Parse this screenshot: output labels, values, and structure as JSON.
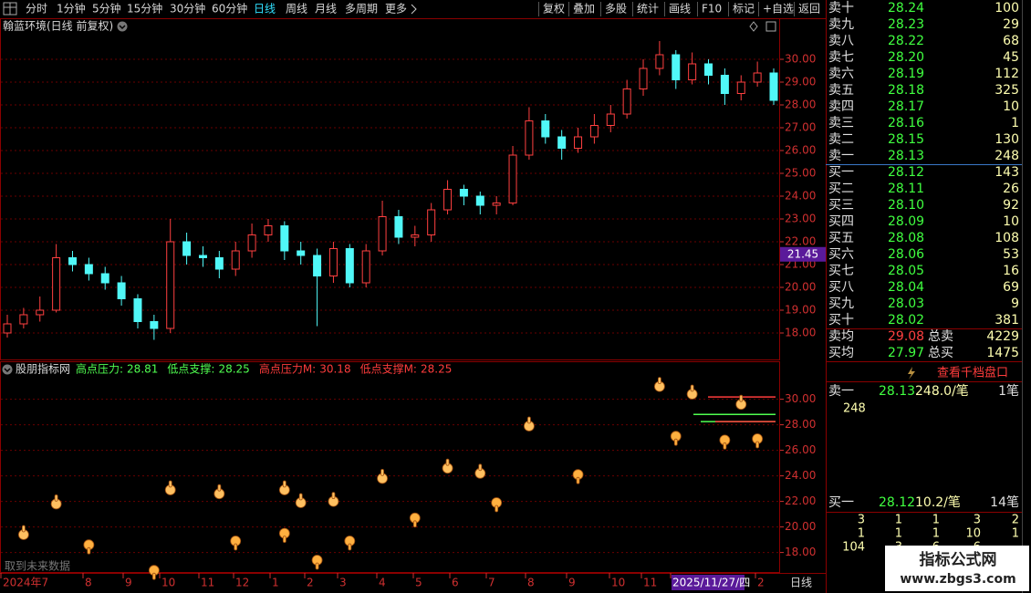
{
  "toolbar": {
    "left": [
      "分时",
      "1分钟",
      "5分钟",
      "15分钟",
      "30分钟",
      "60分钟",
      "日线",
      "周线",
      "月线",
      "多周期",
      "更多"
    ],
    "active": "日线",
    "right": [
      "复权",
      "叠加",
      "多股",
      "统计",
      "画线",
      "F10",
      "标记",
      "+自选",
      "返回"
    ]
  },
  "chart_data": [
    {
      "type": "candlestick",
      "title": "翰蓝环境(日线 前复权)",
      "up_color": "#ff4040",
      "down_color": "#50f8f8",
      "open": [
        18.0,
        18.4,
        18.8,
        19.0,
        21.3,
        21.0,
        20.6,
        20.2,
        19.5,
        18.5,
        18.2,
        22.0,
        21.4,
        21.3,
        20.8,
        21.6,
        22.3,
        22.7,
        21.6,
        21.4,
        20.5,
        21.7,
        20.2,
        21.6,
        23.1,
        22.2,
        22.3,
        23.4,
        24.3,
        24.0,
        23.6,
        23.7,
        25.8,
        27.3,
        26.6,
        26.1,
        26.6,
        27.1,
        27.6,
        28.7,
        29.6,
        30.2,
        29.1,
        29.8,
        29.3,
        28.5,
        29.0,
        29.4
      ],
      "high": [
        18.8,
        19.1,
        19.6,
        21.9,
        21.6,
        21.3,
        20.9,
        20.5,
        19.7,
        18.8,
        23.0,
        22.4,
        21.8,
        21.6,
        22.0,
        22.8,
        23.0,
        22.9,
        22.0,
        21.7,
        22.0,
        21.9,
        21.9,
        23.8,
        23.4,
        22.7,
        23.7,
        24.7,
        24.5,
        24.2,
        24.0,
        26.2,
        27.9,
        27.6,
        26.9,
        27.0,
        27.6,
        28.0,
        29.1,
        30.0,
        30.8,
        30.4,
        30.3,
        30.0,
        29.6,
        29.3,
        29.9,
        29.6
      ],
      "low": [
        17.8,
        18.2,
        18.5,
        18.9,
        20.7,
        20.3,
        19.9,
        19.2,
        18.2,
        17.7,
        18.0,
        21.0,
        20.9,
        20.4,
        20.5,
        21.3,
        22.0,
        21.2,
        21.0,
        18.3,
        20.2,
        20.0,
        20.0,
        21.4,
        21.9,
        21.8,
        22.0,
        23.2,
        23.6,
        23.2,
        23.2,
        23.6,
        25.6,
        26.3,
        25.6,
        25.9,
        26.3,
        26.8,
        27.4,
        28.4,
        29.3,
        28.7,
        28.9,
        28.9,
        28.0,
        28.2,
        28.8,
        28.0
      ],
      "close": [
        18.4,
        18.8,
        19.0,
        21.3,
        21.0,
        20.6,
        20.2,
        19.5,
        18.5,
        18.2,
        22.0,
        21.4,
        21.3,
        20.8,
        21.6,
        22.3,
        22.7,
        21.6,
        21.4,
        20.5,
        21.7,
        20.2,
        21.6,
        23.1,
        22.2,
        22.3,
        23.4,
        24.3,
        24.0,
        23.6,
        23.7,
        25.8,
        27.3,
        26.6,
        26.1,
        26.6,
        27.1,
        27.6,
        28.7,
        29.6,
        30.2,
        29.1,
        29.8,
        29.3,
        28.5,
        29.0,
        29.4,
        28.2
      ],
      "ylim": [
        16.8,
        31.8
      ],
      "yticks": [
        {
          "value": 18,
          "label": "18.00"
        },
        {
          "value": 19,
          "label": "19.00"
        },
        {
          "value": 20,
          "label": "20.00"
        },
        {
          "value": 21,
          "label": "21.00"
        },
        {
          "value": 22,
          "label": "22.00"
        },
        {
          "value": 23,
          "label": "23.00"
        },
        {
          "value": 24,
          "label": "24.00"
        },
        {
          "value": 25,
          "label": "25.00"
        },
        {
          "value": 26,
          "label": "26.00"
        },
        {
          "value": 27,
          "label": "27.00"
        },
        {
          "value": 28,
          "label": "28.00"
        },
        {
          "value": 29,
          "label": "29.00"
        },
        {
          "value": 30,
          "label": "30.00"
        }
      ],
      "grid": true,
      "cursor_price": {
        "value": 21.45,
        "label": "21.45"
      },
      "x_labels": [
        "2024年7",
        "8",
        "9",
        "10",
        "11",
        "12",
        "1",
        "2",
        "3",
        "4",
        "5",
        "6",
        "7",
        "8",
        "9",
        "10",
        "11",
        "2025/11/27/四",
        "2"
      ],
      "cursor_date": "2025/11/27/四",
      "period": "日线"
    },
    {
      "type": "scatter",
      "title": "股朋指标网",
      "legend": [
        {
          "name": "高点压力:",
          "value": 28.81,
          "color": "#50ff50"
        },
        {
          "name": "低点支撑:",
          "value": 28.25,
          "color": "#50ff50"
        },
        {
          "name": "高点压力M:",
          "value": 30.18,
          "color": "#ff3c3c"
        },
        {
          "name": "低点支撑M:",
          "value": 28.25,
          "color": "#ff3c3c"
        }
      ],
      "high_markers": {
        "x": [
          1,
          3,
          10,
          13,
          17,
          18,
          20,
          23,
          27,
          29,
          32,
          40,
          42,
          45
        ],
        "values": [
          19.4,
          21.8,
          22.9,
          22.6,
          22.9,
          21.9,
          22.0,
          23.8,
          24.6,
          24.2,
          27.9,
          31.0,
          30.4,
          29.6
        ],
        "color": "#ffc060"
      },
      "low_markers": {
        "x": [
          5,
          9,
          14,
          17,
          19,
          21,
          25,
          30,
          35,
          41,
          44,
          46
        ],
        "values": [
          18.6,
          16.6,
          18.9,
          19.5,
          17.4,
          18.9,
          20.7,
          21.9,
          24.1,
          27.1,
          26.8,
          26.9
        ],
        "color": "#ffb040"
      },
      "ylim": [
        16.4,
        32.9
      ],
      "yticks": [
        {
          "value": 18,
          "label": "18.00"
        },
        {
          "value": 20,
          "label": "20.00"
        },
        {
          "value": 22,
          "label": "22.00"
        },
        {
          "value": 24,
          "label": "24.00"
        },
        {
          "value": 26,
          "label": "26.00"
        },
        {
          "value": 28,
          "label": "28.00"
        },
        {
          "value": 30,
          "label": "30.00"
        }
      ],
      "grid": true,
      "note": "取到未来数据"
    }
  ],
  "order_book": {
    "asks": [
      [
        "卖十",
        "28.24",
        100
      ],
      [
        "卖九",
        "28.23",
        29
      ],
      [
        "卖八",
        "28.22",
        68
      ],
      [
        "卖七",
        "28.20",
        45
      ],
      [
        "卖六",
        "28.19",
        112
      ],
      [
        "卖五",
        "28.18",
        325
      ],
      [
        "卖四",
        "28.17",
        10
      ],
      [
        "卖三",
        "28.16",
        1
      ],
      [
        "卖二",
        "28.15",
        130
      ],
      [
        "卖一",
        "28.13",
        248
      ]
    ],
    "bids": [
      [
        "买一",
        "28.12",
        143
      ],
      [
        "买二",
        "28.11",
        26
      ],
      [
        "买三",
        "28.10",
        92
      ],
      [
        "买四",
        "28.09",
        10
      ],
      [
        "买五",
        "28.08",
        108
      ],
      [
        "买六",
        "28.06",
        53
      ],
      [
        "买七",
        "28.05",
        16
      ],
      [
        "买八",
        "28.04",
        69
      ],
      [
        "买九",
        "28.03",
        9
      ],
      [
        "买十",
        "28.02",
        381
      ]
    ],
    "summary": [
      [
        "卖均",
        "29.08",
        "总卖",
        4229
      ],
      [
        "买均",
        "27.97",
        "总买",
        1475
      ]
    ],
    "depth_link": "查看千档盘口",
    "top_ask": [
      "卖一",
      "28.13",
      "248.0/笔",
      "1笔"
    ],
    "top_ask_detail": "248",
    "top_bid": [
      "买一",
      "28.12",
      "10.2/笔",
      "14笔"
    ],
    "queue": [
      [
        3,
        1,
        1,
        3,
        2
      ],
      [
        1,
        1,
        1,
        10,
        1
      ],
      [
        104,
        3,
        6,
        6
      ]
    ]
  },
  "watermark": {
    "title": "指标公式网",
    "url": "www.zbgs3.com"
  }
}
